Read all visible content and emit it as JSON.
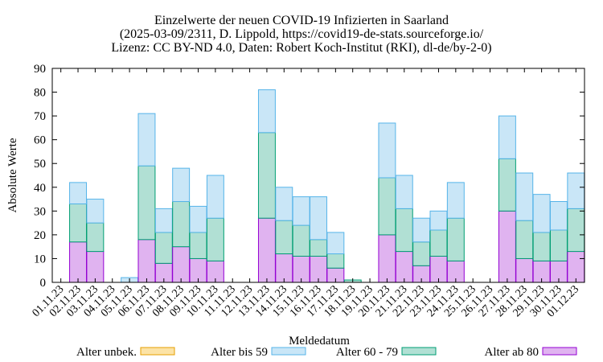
{
  "chart_data": {
    "type": "bar",
    "stacked": true,
    "title_lines": [
      "Einzelwerte der neuen COVID-19 Infizierten in Saarland",
      "(2025-03-09/2311, D. Lippold, https://covid19-de-stats.sourceforge.io/",
      "Lizenz: CC BY-ND 4.0, Daten: Robert Koch-Institut (RKI), dl-de/by-2-0)"
    ],
    "xlabel": "Meldedatum",
    "ylabel": "Absolute Werte",
    "ylim": [
      0,
      90
    ],
    "yticks": [
      0,
      10,
      20,
      30,
      40,
      50,
      60,
      70,
      80,
      90
    ],
    "grid": false,
    "legend_position": "bottom",
    "categories": [
      "01.11.23",
      "02.11.23",
      "03.11.23",
      "04.11.23",
      "05.11.23",
      "06.11.23",
      "07.11.23",
      "08.11.23",
      "09.11.23",
      "10.11.23",
      "11.11.23",
      "12.11.23",
      "13.11.23",
      "14.11.23",
      "15.11.23",
      "16.11.23",
      "17.11.23",
      "18.11.23",
      "19.11.23",
      "20.11.23",
      "21.11.23",
      "22.11.23",
      "23.11.23",
      "24.11.23",
      "25.11.23",
      "26.11.23",
      "27.11.23",
      "28.11.23",
      "29.11.23",
      "30.11.23",
      "01.12.23"
    ],
    "series": [
      {
        "name": "Alter ab 80",
        "fill": "#e0b3f0",
        "stroke": "#9400d3",
        "values": [
          0,
          17,
          13,
          0,
          0,
          18,
          8,
          15,
          10,
          9,
          0,
          0,
          27,
          12,
          11,
          11,
          6,
          0,
          0,
          20,
          13,
          7,
          11,
          9,
          0,
          0,
          30,
          10,
          9,
          9,
          13
        ]
      },
      {
        "name": "Alter 60 - 79",
        "fill": "#b1e0d4",
        "stroke": "#009e73",
        "values": [
          0,
          16,
          12,
          0,
          0,
          31,
          13,
          19,
          11,
          18,
          0,
          0,
          36,
          14,
          13,
          7,
          6,
          1,
          0,
          24,
          18,
          10,
          11,
          18,
          0,
          0,
          22,
          16,
          12,
          13,
          18
        ]
      },
      {
        "name": "Alter bis 59",
        "fill": "#c9e6f7",
        "stroke": "#56b4e9",
        "values": [
          0,
          9,
          10,
          0,
          2,
          22,
          10,
          14,
          11,
          18,
          0,
          0,
          18,
          14,
          12,
          18,
          9,
          0,
          0,
          23,
          14,
          10,
          8,
          15,
          0,
          0,
          18,
          20,
          16,
          12,
          15
        ]
      },
      {
        "name": "Alter unbek.",
        "fill": "#fce3a6",
        "stroke": "#e69f00",
        "values": [
          0,
          0,
          0,
          0,
          0,
          0,
          0,
          0,
          0,
          0,
          0,
          0,
          0,
          0,
          0,
          0,
          0,
          0,
          0,
          0,
          0,
          0,
          0,
          0,
          0,
          0,
          0,
          0,
          0,
          0,
          0
        ]
      }
    ],
    "legend_order": [
      "Alter unbek.",
      "Alter bis 59",
      "Alter 60 - 79",
      "Alter ab 80"
    ]
  }
}
